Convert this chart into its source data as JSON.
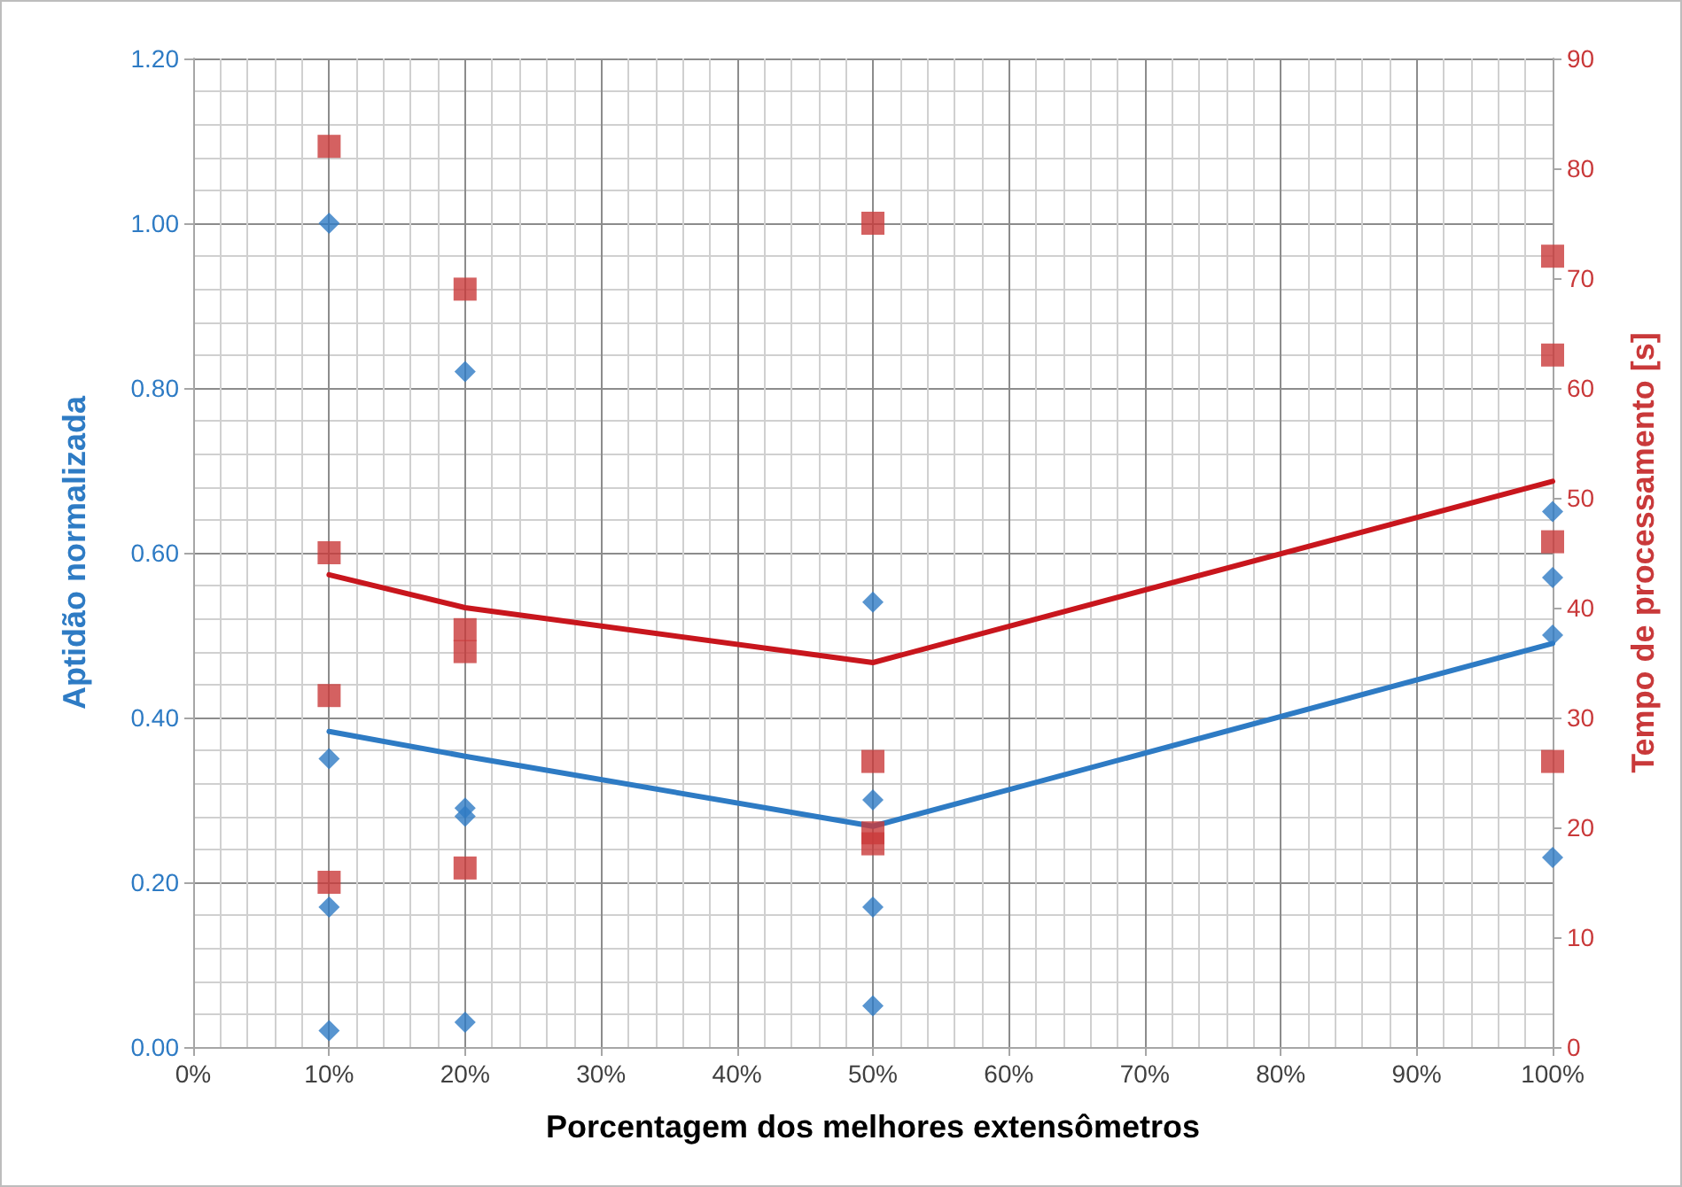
{
  "chart_data": {
    "type": "scatter",
    "xlabel": "Porcentagem dos melhores extensômetros",
    "ylabel": "Aptidão normalizada",
    "y2label": "Tempo de processamento [s]",
    "xlim": [
      0,
      100
    ],
    "xticks": [
      {
        "value": 0,
        "label": "0%"
      },
      {
        "value": 10,
        "label": "10%"
      },
      {
        "value": 20,
        "label": "20%"
      },
      {
        "value": 30,
        "label": "30%"
      },
      {
        "value": 40,
        "label": "40%"
      },
      {
        "value": 50,
        "label": "50%"
      },
      {
        "value": 60,
        "label": "60%"
      },
      {
        "value": 70,
        "label": "70%"
      },
      {
        "value": 80,
        "label": "80%"
      },
      {
        "value": 90,
        "label": "90%"
      },
      {
        "value": 100,
        "label": "100%"
      }
    ],
    "ylim": [
      0,
      1.2
    ],
    "yticks": [
      {
        "value": 0,
        "label": "0.00"
      },
      {
        "value": 0.2,
        "label": "0.20"
      },
      {
        "value": 0.4,
        "label": "0.40"
      },
      {
        "value": 0.6,
        "label": "0.60"
      },
      {
        "value": 0.8,
        "label": "0.80"
      },
      {
        "value": 1,
        "label": "1.00"
      },
      {
        "value": 1.2,
        "label": "1.20"
      }
    ],
    "y2lim": [
      0,
      90
    ],
    "y2ticks": [
      0,
      10,
      20,
      30,
      40,
      50,
      60,
      70,
      80,
      90
    ],
    "grid": true,
    "series": [
      {
        "marker": "diamond",
        "color": "#2e7bc4",
        "x": [
          10,
          10,
          10,
          10,
          20,
          20,
          20,
          20,
          50,
          50,
          50,
          50,
          100,
          100,
          100,
          100
        ],
        "values": [
          1.0,
          0.35,
          0.17,
          0.02,
          0.82,
          0.29,
          0.28,
          0.03,
          0.54,
          0.3,
          0.17,
          0.05,
          0.65,
          0.57,
          0.5,
          0.23
        ]
      },
      {
        "marker": "square",
        "color": "#c9393a",
        "axis": "y2",
        "x": [
          10,
          10,
          10,
          10,
          20,
          20,
          20,
          20,
          50,
          50,
          50,
          50,
          100,
          100,
          100,
          100
        ],
        "values": [
          82,
          45,
          32,
          15,
          69,
          38,
          36,
          16.3,
          75,
          26,
          19.5,
          18.5,
          72,
          63,
          46,
          26
        ]
      },
      {
        "type": "line",
        "marker": "none",
        "color": "#2e7bc4",
        "x": [
          10,
          20,
          50,
          100
        ],
        "values": [
          0.383,
          0.353,
          0.268,
          0.49
        ]
      },
      {
        "type": "line",
        "marker": "none",
        "color": "#c8161d",
        "axis": "y2",
        "x": [
          10,
          20,
          50,
          100
        ],
        "values": [
          43,
          40,
          35,
          51.5
        ]
      }
    ]
  }
}
